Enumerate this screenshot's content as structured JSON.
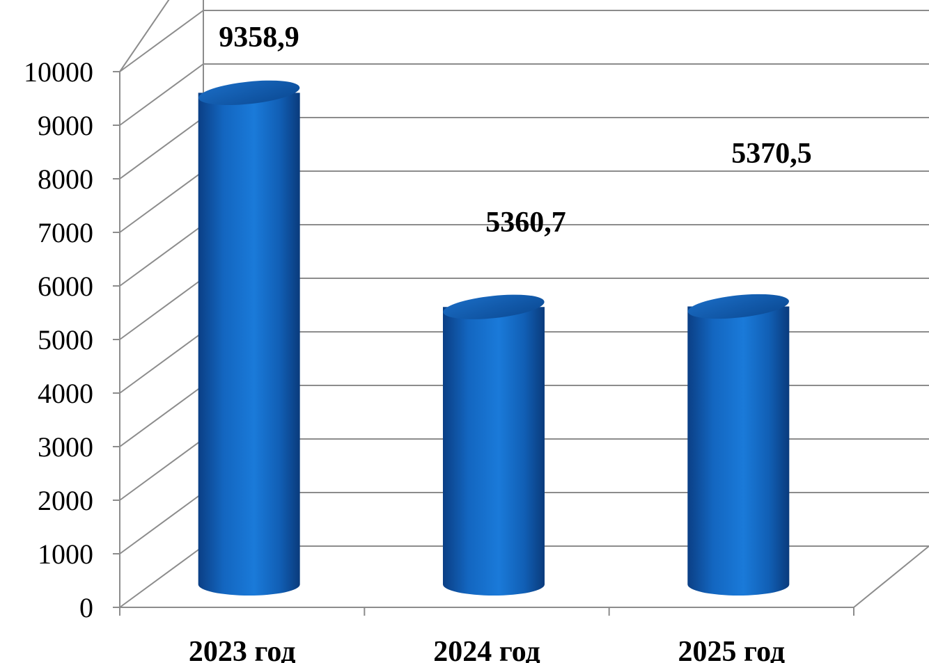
{
  "chart_data": {
    "type": "bar",
    "style": "3d-cylinder",
    "categories": [
      "2023 год",
      "2024 год",
      "2025 год"
    ],
    "values": [
      9358.9,
      5360.7,
      5370.5
    ],
    "data_labels": [
      "9358,9",
      "5360,7",
      "5370,5"
    ],
    "yticks": [
      "0",
      "1000",
      "2000",
      "3000",
      "4000",
      "5000",
      "6000",
      "7000",
      "8000",
      "9000",
      "10000"
    ],
    "ylim": [
      0,
      10000
    ],
    "grid": true,
    "legend": "none",
    "colors": {
      "bar": "#1172d2",
      "bar_dark": "#0a3f86",
      "grid": "#8c8c8c"
    }
  }
}
